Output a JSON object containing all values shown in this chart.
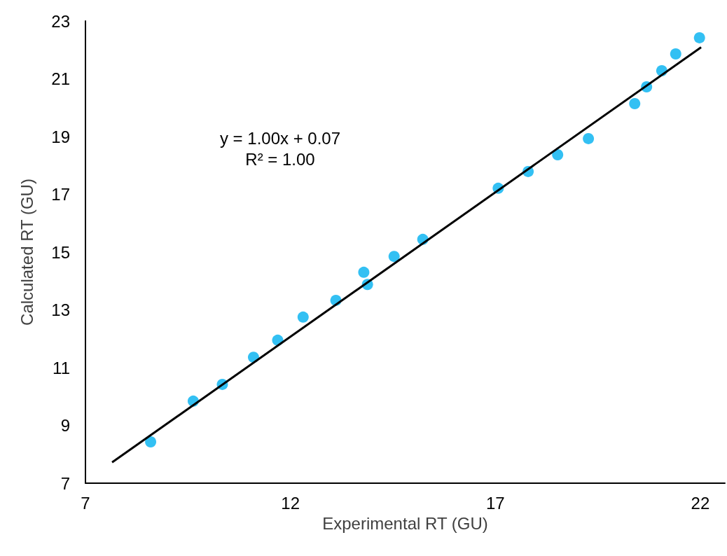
{
  "chart_data": {
    "type": "scatter",
    "xlabel": "Experimental RT (GU)",
    "ylabel": "Calculated RT (GU)",
    "annotations": [
      "y = 1.00x + 0.07",
      "R² = 1.00"
    ],
    "series": [
      {
        "color": "#00b0f0",
        "marker": "circle",
        "x": [
          8.59,
          9.63,
          10.34,
          11.1,
          11.69,
          12.31,
          13.11,
          13.79,
          13.88,
          14.53,
          15.23,
          17.07,
          17.8,
          18.52,
          19.27,
          20.4,
          20.69,
          21.06,
          21.4,
          21.98
        ],
        "values": [
          8.43,
          9.84,
          10.42,
          11.36,
          11.95,
          12.75,
          13.33,
          14.3,
          13.88,
          14.85,
          15.44,
          17.21,
          17.79,
          18.37,
          18.93,
          20.14,
          20.72,
          21.28,
          21.86,
          22.42
        ]
      },
      {
        "type": "line",
        "color": "#000000",
        "marker": "none",
        "line_style": "solid",
        "x": [
          7.65,
          22.02
        ],
        "values": [
          7.72,
          22.09
        ]
      }
    ],
    "xlim": [
      7,
      22.6
    ],
    "xticks": [
      7,
      12,
      17,
      22
    ],
    "ylim": [
      7,
      23
    ],
    "yticks": [
      7,
      9,
      11,
      13,
      15,
      17,
      19,
      21,
      23
    ],
    "grid": false
  }
}
